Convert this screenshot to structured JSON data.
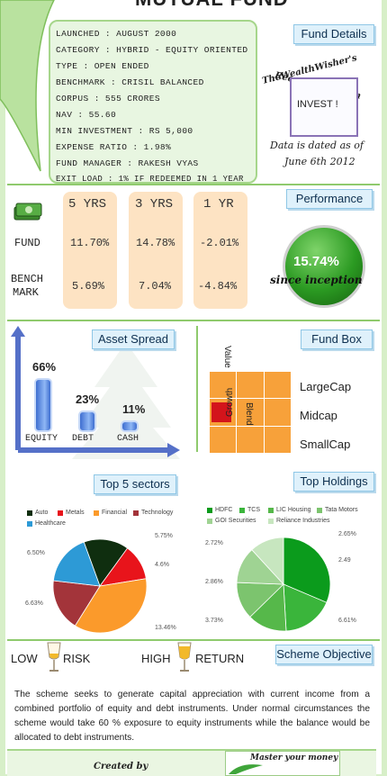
{
  "header": {
    "title": "MUTUAL FUND"
  },
  "fund_details": {
    "tab": "Fund Details",
    "rows": [
      "LAUNCHED : AUGUST 2000",
      "CATEGORY : HYBRID - EQUITY ORIENTED",
      "TYPE : OPEN ENDED",
      "BENCHMARK : CRISIL BALANCED",
      "CORPUS : 555 CRORES",
      "NAV : 55.60",
      "MIN INVESTMENT : RS 5,000",
      "EXPENSE RATIO : 1.98%",
      "FUND MANAGER : RAKESH VYAS",
      "EXIT LOAD : 1% IF REDEEMED IN 1 YEAR"
    ]
  },
  "recommendation": {
    "line1": "TheWealthWisher's",
    "line2": "Recommendation",
    "label": "INVEST !",
    "date_line1": "Data is dated as of",
    "date_line2": "June 6th 2012"
  },
  "performance": {
    "tab": "Performance",
    "headers": [
      "5 YRS",
      "3 YRS",
      "1 YR"
    ],
    "fund_label": "FUND",
    "fund_values": [
      "11.70%",
      "14.78%",
      "-2.01%"
    ],
    "bench_label_1": "BENCH",
    "bench_label_2": "MARK",
    "bench_values": [
      "5.69%",
      "7.04%",
      "-4.84%"
    ],
    "since_value": "15.74%",
    "since_label": "since inception"
  },
  "asset_spread": {
    "tab": "Asset Spread",
    "chart_data": {
      "type": "bar",
      "categories": [
        "EQUITY",
        "DEBT",
        "CASH"
      ],
      "values": [
        66,
        23,
        11
      ],
      "labels": [
        "66%",
        "23%",
        "11%"
      ]
    }
  },
  "fund_box": {
    "tab": "Fund Box",
    "value_label": "Value",
    "blend_label": "Blend",
    "growth_label": "Growth",
    "caps": [
      "LargeCap",
      "Midcap",
      "SmallCap"
    ]
  },
  "top_sectors": {
    "tab": "Top 5 sectors",
    "legend": [
      "Auto",
      "Metals",
      "Financial",
      "Technology",
      "Healthcare"
    ],
    "chart_data": {
      "type": "pie",
      "categories": [
        "Auto",
        "Metals",
        "Financial",
        "Technology",
        "Healthcare"
      ],
      "values": [
        5.75,
        4.6,
        13.46,
        6.63,
        6.5
      ],
      "labels": [
        "5.75%",
        "4.6%",
        "13.46%",
        "6.63%",
        "6.50%"
      ]
    },
    "colors": [
      "#0f2e0f",
      "#e8141b",
      "#fb9a2b",
      "#a3343a",
      "#2d9ad6"
    ]
  },
  "top_holdings": {
    "tab": "Top Holdings",
    "legend": [
      "HDFC",
      "TCS",
      "LIC Housing",
      "Tata Motors",
      "GOI Securities",
      "Reliance Industries"
    ],
    "chart_data": {
      "type": "pie",
      "categories": [
        "HDFC",
        "TCS",
        "LIC Housing",
        "Tata Motors",
        "GOI Securities",
        "Reliance Industries"
      ],
      "values": [
        6.61,
        3.73,
        2.86,
        2.72,
        2.65,
        2.49
      ],
      "labels": [
        "6.61%",
        "3.73%",
        "2.86%",
        "2.72%",
        "2.65%",
        "2.49"
      ]
    },
    "colors": [
      "#0b9b1c",
      "#3ab53b",
      "#56b84a",
      "#7cc46e",
      "#9fd393",
      "#c7e6bf"
    ]
  },
  "objective": {
    "low": "LOW",
    "risk": "RISK",
    "high": "HIGH",
    "return_label": "RETURN",
    "tab": "Scheme Objective",
    "text": "The scheme seeks to generate capital appreciation with current income from a combined portfolio of equity and debt instruments. Under normal circumstances the scheme would take 60 % exposure to equity instruments while the balance would be allocated to debt instruments."
  },
  "footer": {
    "created_by": "Created by",
    "master": "Master your money"
  }
}
